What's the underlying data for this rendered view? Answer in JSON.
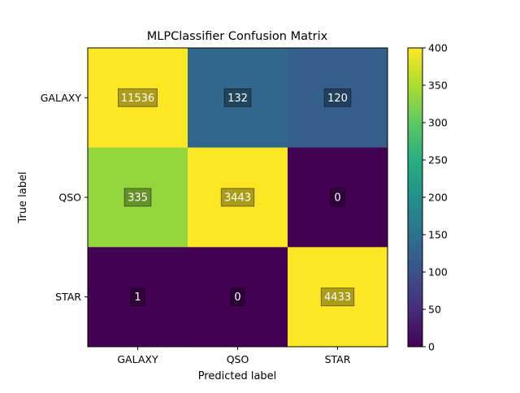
{
  "chart_data": {
    "type": "heatmap",
    "title": "MLPClassifier Confusion Matrix",
    "xlabel": "Predicted label",
    "ylabel": "True label",
    "x_categories": [
      "GALAXY",
      "QSO",
      "STAR"
    ],
    "y_categories": [
      "GALAXY",
      "QSO",
      "STAR"
    ],
    "values": [
      [
        11536,
        132,
        120
      ],
      [
        335,
        3443,
        0
      ],
      [
        1,
        0,
        4433
      ]
    ],
    "cell_labels": [
      [
        "11536",
        "132",
        "120"
      ],
      [
        "335",
        "3443",
        "0"
      ],
      [
        "1",
        "0",
        "4433"
      ]
    ],
    "color_range": [
      0,
      400
    ],
    "colormap": "viridis",
    "colorbar_ticks": [
      0,
      50,
      100,
      150,
      200,
      250,
      300,
      350,
      400
    ],
    "grid": false
  }
}
